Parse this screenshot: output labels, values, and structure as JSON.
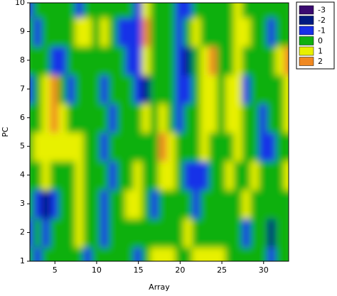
{
  "chart_data": {
    "type": "contour",
    "xlabel": "Array",
    "ylabel": "PC",
    "x": [
      2,
      3,
      4,
      5,
      6,
      7,
      8,
      9,
      10,
      11,
      12,
      13,
      14,
      15,
      16,
      17,
      18,
      19,
      20,
      21,
      22,
      23,
      24,
      25,
      26,
      27,
      28,
      29,
      30,
      31,
      32,
      33
    ],
    "y": [
      1,
      2,
      3,
      4,
      5,
      6,
      7,
      8,
      9,
      10
    ],
    "z": [
      [
        0,
        -1,
        0,
        0,
        0,
        0,
        0,
        -1,
        0,
        0,
        0,
        0,
        0,
        -1,
        0,
        1,
        1,
        1,
        0,
        0,
        1,
        1,
        1,
        1,
        0,
        0,
        0,
        0,
        0,
        -1,
        0,
        0
      ],
      [
        -1,
        0,
        -1,
        0,
        0,
        0,
        1,
        0,
        0,
        -1,
        0,
        0,
        0,
        0,
        0,
        0,
        0,
        0,
        0,
        1,
        0,
        0,
        0,
        0,
        0,
        0,
        -1,
        0,
        0,
        -2,
        0,
        0
      ],
      [
        0,
        -1,
        -2,
        -1,
        0,
        0,
        1,
        0,
        0,
        -1,
        0,
        0,
        1,
        1,
        0,
        -1,
        0,
        0,
        0,
        0,
        -1,
        0,
        0,
        0,
        0,
        0,
        1,
        0,
        0,
        0,
        0,
        0
      ],
      [
        0,
        0,
        1,
        0,
        0,
        0,
        1,
        0,
        0,
        0,
        -1,
        0,
        0,
        1,
        0,
        0,
        1,
        1,
        0,
        -1,
        -1,
        -1,
        0,
        0,
        1,
        0,
        0,
        1,
        0,
        0,
        0,
        1
      ],
      [
        0,
        1,
        1,
        1,
        1,
        1,
        1,
        0,
        0,
        -1,
        0,
        0,
        0,
        0,
        0,
        0,
        2,
        1,
        0,
        0,
        0,
        1,
        0,
        0,
        0,
        1,
        0,
        0,
        -1,
        -1,
        0,
        0
      ],
      [
        0,
        0,
        1,
        2,
        1,
        0,
        0,
        0,
        0,
        0,
        -1,
        0,
        0,
        0,
        1,
        0,
        1,
        0,
        -1,
        0,
        0,
        1,
        1,
        0,
        1,
        1,
        0,
        0,
        -1,
        0,
        0,
        1
      ],
      [
        -1,
        0,
        1,
        2,
        0,
        -1,
        0,
        0,
        0,
        -1,
        0,
        0,
        0,
        -1,
        -2,
        0,
        0,
        0,
        -1,
        -1,
        0,
        1,
        1,
        0,
        1,
        1,
        -1,
        0,
        0,
        0,
        0,
        1
      ],
      [
        0,
        0,
        0,
        -1,
        -1,
        0,
        0,
        0,
        0,
        0,
        0,
        0,
        -1,
        -1,
        1,
        0,
        0,
        0,
        -1,
        -2,
        0,
        1,
        2,
        0,
        0,
        1,
        0,
        0,
        0,
        0,
        1,
        2
      ],
      [
        0,
        -1,
        0,
        0,
        0,
        0,
        1,
        1,
        0,
        1,
        0,
        -1,
        -1,
        -1,
        2,
        0,
        0,
        0,
        -1,
        0,
        1,
        0,
        0,
        0,
        0,
        1,
        1,
        0,
        0,
        -1,
        0,
        0
      ],
      [
        -1,
        0,
        0,
        0,
        0,
        0,
        -1,
        0,
        0,
        0,
        0,
        0,
        0,
        -1,
        1,
        0,
        0,
        0,
        -1,
        -1,
        0,
        0,
        0,
        0,
        0,
        1,
        0,
        0,
        0,
        0,
        0,
        0
      ]
    ],
    "levels": [
      -3,
      -2,
      -1,
      0,
      1,
      2
    ],
    "colors": [
      "#3a0a70",
      "#001a80",
      "#1830e8",
      "#10b010",
      "#e8f000",
      "#f08820"
    ],
    "xlim": [
      2,
      33
    ],
    "ylim": [
      1,
      10
    ],
    "xticks": [
      5,
      10,
      15,
      20,
      25,
      30
    ],
    "yticks": [
      1,
      2,
      3,
      4,
      5,
      6,
      7,
      8,
      9,
      10
    ]
  }
}
